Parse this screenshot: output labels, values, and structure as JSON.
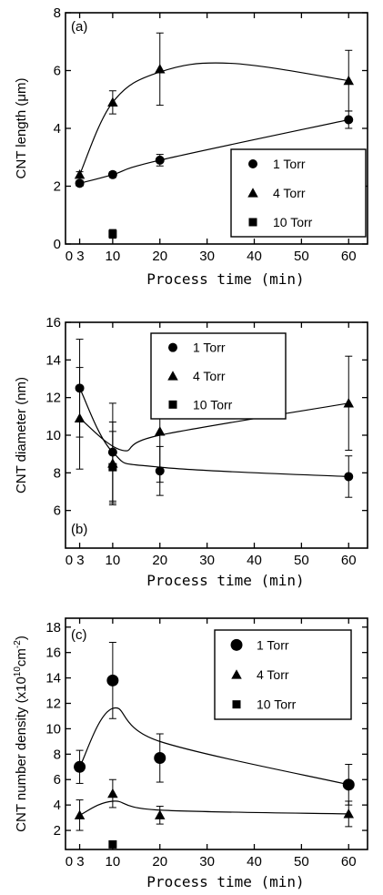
{
  "chart_data": [
    {
      "type": "scatter",
      "panel_label": "(a)",
      "xlabel": "Process time (min)",
      "ylabel": "CNT length (μm)",
      "xticks": [
        3,
        10,
        20,
        30,
        40,
        50,
        60
      ],
      "xtick_labels": [
        "0 3",
        "10",
        "20",
        "30",
        "40",
        "50",
        "60"
      ],
      "yticks": [
        0,
        2,
        4,
        6,
        8
      ],
      "xlim": [
        0,
        64
      ],
      "ylim": [
        0,
        8
      ],
      "legend_position": "lower-right",
      "series": [
        {
          "name": "1 Torr",
          "marker": "circle",
          "points": [
            [
              3,
              2.1,
              0.1
            ],
            [
              10,
              2.4,
              0.1
            ],
            [
              20,
              2.9,
              0.2
            ],
            [
              60,
              4.3,
              0.3
            ]
          ],
          "curve": [
            [
              3,
              2.1
            ],
            [
              10,
              2.4
            ],
            [
              20,
              2.9
            ],
            [
              60,
              4.3
            ]
          ]
        },
        {
          "name": "4 Torr",
          "marker": "triangle",
          "points": [
            [
              3,
              2.4,
              0.1
            ],
            [
              10,
              4.9,
              0.4
            ],
            [
              20,
              6.05,
              1.25
            ],
            [
              60,
              5.65,
              1.05
            ]
          ],
          "curve": [
            [
              3,
              2.4
            ],
            [
              10,
              4.9
            ],
            [
              20,
              5.95
            ],
            [
              35,
              6.25
            ],
            [
              60,
              5.65
            ]
          ]
        },
        {
          "name": "10 Torr",
          "marker": "square",
          "points": [
            [
              10,
              0.35,
              0.15
            ]
          ],
          "curve": []
        }
      ]
    },
    {
      "type": "scatter",
      "panel_label": "(b)",
      "xlabel": "Process time (min)",
      "ylabel": "CNT diameter (nm)",
      "xticks": [
        3,
        10,
        20,
        30,
        40,
        50,
        60
      ],
      "xtick_labels": [
        "0 3",
        "10",
        "20",
        "30",
        "40",
        "50",
        "60"
      ],
      "yticks": [
        6,
        8,
        10,
        12,
        14,
        16
      ],
      "xlim": [
        0,
        64
      ],
      "ylim": [
        4,
        16
      ],
      "legend_position": "top-left",
      "series": [
        {
          "name": "1 Torr",
          "marker": "circle",
          "points": [
            [
              3,
              12.5,
              2.6
            ],
            [
              10,
              9.1,
              2.6
            ],
            [
              20,
              8.1,
              1.3
            ],
            [
              60,
              7.8,
              1.1
            ]
          ],
          "curve": [
            [
              3,
              12.5
            ],
            [
              10,
              9.1
            ],
            [
              20,
              8.3
            ],
            [
              60,
              7.8
            ]
          ]
        },
        {
          "name": "4 Torr",
          "marker": "triangle",
          "points": [
            [
              3,
              10.9,
              2.7
            ],
            [
              10,
              8.5,
              2.2
            ],
            [
              20,
              10.2,
              2.7
            ],
            [
              60,
              11.7,
              2.5
            ]
          ],
          "curve": [
            [
              3,
              10.9
            ],
            [
              12,
              9.2
            ],
            [
              20,
              10.0
            ],
            [
              60,
              11.7
            ]
          ]
        },
        {
          "name": "10 Torr",
          "marker": "square",
          "points": [
            [
              10,
              8.3,
              1.9
            ]
          ],
          "curve": []
        }
      ]
    },
    {
      "type": "scatter",
      "panel_label": "(c)",
      "xlabel": "Process time (min)",
      "ylabel_main": "CNT number density (x10",
      "ylabel_sup1": "10",
      "ylabel_mid": "cm",
      "ylabel_sup2": "-2",
      "ylabel_end": ")",
      "xticks": [
        3,
        10,
        20,
        30,
        40,
        50,
        60
      ],
      "xtick_labels": [
        "0 3",
        "10",
        "20",
        "30",
        "40",
        "50",
        "60"
      ],
      "yticks": [
        2,
        4,
        6,
        8,
        10,
        12,
        14,
        16,
        18
      ],
      "xlim": [
        0,
        64
      ],
      "ylim": [
        0.5,
        18.7
      ],
      "legend_position": "top-right",
      "series": [
        {
          "name": "1 Torr",
          "marker": "circle",
          "points": [
            [
              3,
              7.0,
              1.3
            ],
            [
              10,
              13.8,
              3.0
            ],
            [
              20,
              7.7,
              1.9
            ],
            [
              60,
              5.6,
              1.6
            ]
          ],
          "curve": [
            [
              3,
              7.0
            ],
            [
              10,
              11.6
            ],
            [
              20,
              9.0
            ],
            [
              60,
              5.6
            ]
          ]
        },
        {
          "name": "4 Torr",
          "marker": "triangle",
          "points": [
            [
              3,
              3.2,
              1.2
            ],
            [
              10,
              4.9,
              1.1
            ],
            [
              20,
              3.2,
              0.7
            ],
            [
              60,
              3.3,
              1.0
            ]
          ],
          "curve": [
            [
              3,
              3.2
            ],
            [
              10,
              4.3
            ],
            [
              20,
              3.6
            ],
            [
              60,
              3.3
            ]
          ]
        },
        {
          "name": "10 Torr",
          "marker": "square",
          "points": [
            [
              10,
              0.9,
              0.2
            ]
          ],
          "curve": []
        }
      ]
    }
  ]
}
